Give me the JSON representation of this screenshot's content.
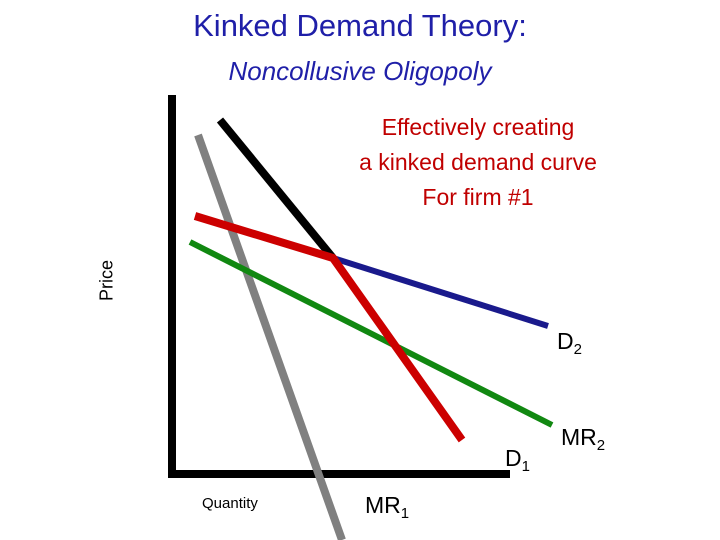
{
  "title": "Kinked Demand Theory:",
  "subtitle": "Noncollusive Oligopoly",
  "note": {
    "line1": "Effectively creating",
    "line2": "a kinked demand curve",
    "line3": "For firm #1"
  },
  "axes": {
    "y_label": "Price",
    "x_label": "Quantity"
  },
  "curves": [
    {
      "id": "black-demand-upper",
      "color": "#000000"
    },
    {
      "id": "gray-mr1",
      "color": "#808080",
      "label_main": "MR",
      "label_sub": "1"
    },
    {
      "id": "red-kinked-demand",
      "color": "#cc0000"
    },
    {
      "id": "blue-demand-d2",
      "color": "#1a1a8c",
      "label_main": "D",
      "label_sub": "2"
    },
    {
      "id": "green-mr2",
      "color": "#118811",
      "label_main": "MR",
      "label_sub": "2"
    },
    {
      "id": "d1",
      "label_main": "D",
      "label_sub": "1"
    }
  ]
}
